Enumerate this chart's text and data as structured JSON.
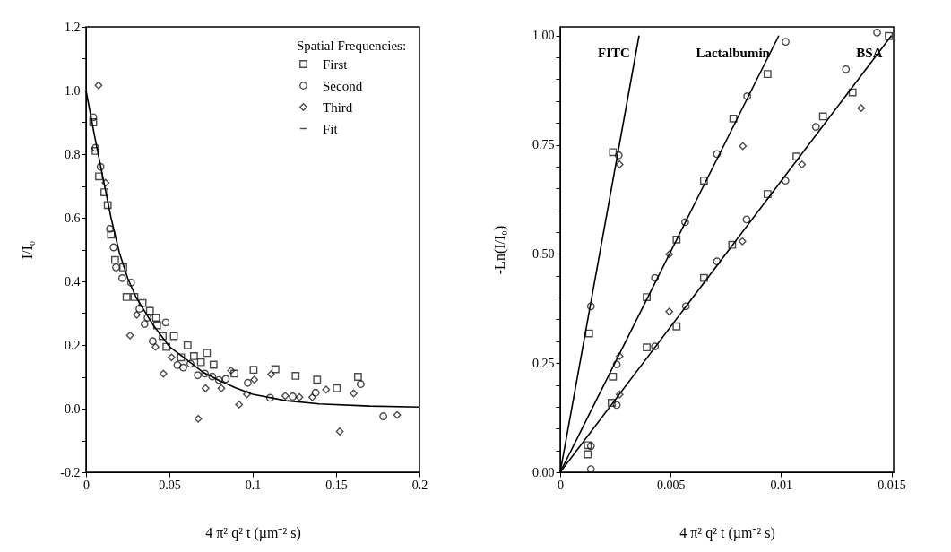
{
  "chart_data": [
    {
      "type": "scatter",
      "xlabel": "4 π² q² t  (µm⁻² s)",
      "ylabel": "I/I₀",
      "legend_title": "Spatial Frequencies:",
      "legend": "top right",
      "grid": false,
      "xlim": [
        0,
        0.2
      ],
      "ylim": [
        -0.2,
        1.2
      ],
      "xticks": [
        0,
        0.05,
        0.1,
        0.15,
        0.2
      ],
      "yticks": [
        {
          "value": -0.2,
          "label": "-0.2"
        },
        {
          "value": -0.1,
          "label": null
        },
        {
          "value": 0,
          "label": "0.0"
        },
        {
          "value": 0.1,
          "label": null
        },
        0.2,
        {
          "value": 0.3,
          "label": null
        },
        0.4,
        {
          "value": 0.5,
          "label": null
        },
        0.6,
        {
          "value": 0.7,
          "label": null
        },
        0.8,
        {
          "value": 0.9,
          "label": null
        },
        {
          "value": 1,
          "label": "1.0"
        },
        {
          "value": 1.1,
          "label": null
        },
        1.2
      ],
      "series": [
        {
          "name": "First",
          "marker": "square",
          "color": "#000000",
          "x": [
            0.0043,
            0.0057,
            0.0078,
            0.011,
            0.013,
            0.015,
            0.0174,
            0.0223,
            0.0243,
            0.029,
            0.0339,
            0.0383,
            0.042,
            0.0426,
            0.046,
            0.0527,
            0.0482,
            0.0609,
            0.057,
            0.0647,
            0.0725,
            0.0689,
            0.0765,
            0.089,
            0.1005,
            0.1136,
            0.1257,
            0.1386,
            0.1504,
            0.1631
          ],
          "values": [
            0.9,
            0.81,
            0.73,
            0.68,
            0.64,
            0.547,
            0.467,
            0.444,
            0.351,
            0.351,
            0.332,
            0.307,
            0.286,
            0.262,
            0.228,
            0.228,
            0.194,
            0.199,
            0.161,
            0.165,
            0.175,
            0.146,
            0.138,
            0.11,
            0.122,
            0.124,
            0.103,
            0.091,
            0.064,
            0.1
          ]
        },
        {
          "name": "Second",
          "marker": "circle",
          "color": "#000000",
          "x": [
            0.0043,
            0.0057,
            0.0087,
            0.0143,
            0.0165,
            0.018,
            0.0217,
            0.027,
            0.032,
            0.0369,
            0.0478,
            0.0351,
            0.04,
            0.0548,
            0.0583,
            0.0626,
            0.067,
            0.0713,
            0.0757,
            0.0797,
            0.0838,
            0.097,
            0.1104,
            0.124,
            0.1377,
            0.1647,
            0.1783
          ],
          "values": [
            0.916,
            0.82,
            0.76,
            0.565,
            0.507,
            0.444,
            0.41,
            0.396,
            0.314,
            0.286,
            0.271,
            0.266,
            0.212,
            0.137,
            0.129,
            0.141,
            0.105,
            0.11,
            0.101,
            0.09,
            0.093,
            0.081,
            0.034,
            0.038,
            0.05,
            0.077,
            -0.024
          ]
        },
        {
          "name": "Third",
          "marker": "diamond",
          "color": "#000000",
          "x": [
            0.0075,
            0.0117,
            0.0304,
            0.0264,
            0.0417,
            0.0513,
            0.0464,
            0.087,
            0.0717,
            0.0812,
            0.1009,
            0.0965,
            0.0918,
            0.0673,
            0.111,
            0.1195,
            0.128,
            0.1357,
            0.144,
            0.1522,
            0.1605,
            0.1866
          ],
          "values": [
            1.016,
            0.71,
            0.295,
            0.23,
            0.194,
            0.161,
            0.11,
            0.12,
            0.064,
            0.064,
            0.091,
            0.045,
            0.013,
            -0.032,
            0.108,
            0.04,
            0.036,
            0.036,
            0.06,
            -0.072,
            0.048,
            -0.02
          ]
        },
        {
          "name": "Fit",
          "type": "line",
          "marker": "none",
          "color": "#000000",
          "x": [
            0,
            0.005,
            0.01,
            0.015,
            0.02,
            0.025,
            0.03,
            0.04,
            0.05,
            0.06,
            0.07,
            0.08,
            0.09,
            0.1,
            0.12,
            0.14,
            0.17,
            0.2
          ],
          "values": [
            1.0,
            0.86,
            0.73,
            0.6,
            0.49,
            0.41,
            0.35,
            0.265,
            0.195,
            0.155,
            0.115,
            0.088,
            0.065,
            0.045,
            0.025,
            0.015,
            0.008,
            0.005
          ]
        }
      ]
    },
    {
      "type": "scatter",
      "xlabel": "4 π² q² t  (µm⁻² s)",
      "ylabel": "-Ln(I/I₀)",
      "grid": false,
      "xlim": [
        0,
        0.0151
      ],
      "ylim": [
        0,
        1.02
      ],
      "xticks": [
        0,
        0.005,
        0.01,
        0.015
      ],
      "yticks": [
        {
          "value": 0,
          "label": "0.00"
        },
        {
          "value": 0.05,
          "label": null
        },
        {
          "value": 0.1,
          "label": null
        },
        {
          "value": 0.15,
          "label": null
        },
        {
          "value": 0.2,
          "label": null
        },
        0.25,
        {
          "value": 0.3,
          "label": null
        },
        {
          "value": 0.35,
          "label": null
        },
        {
          "value": 0.4,
          "label": null
        },
        {
          "value": 0.45,
          "label": null
        },
        {
          "value": 0.5,
          "label": "0.50"
        },
        {
          "value": 0.55,
          "label": null
        },
        {
          "value": 0.6,
          "label": null
        },
        {
          "value": 0.65,
          "label": null
        },
        {
          "value": 0.7,
          "label": null
        },
        0.75,
        {
          "value": 0.8,
          "label": null
        },
        {
          "value": 0.85,
          "label": null
        },
        {
          "value": 0.9,
          "label": null
        },
        {
          "value": 0.95,
          "label": null
        },
        {
          "value": 1,
          "label": "1.00"
        }
      ],
      "series": [
        {
          "marker": "square",
          "color": "#000000",
          "x": [
            0.00131,
            0.00239
          ],
          "values": [
            0.318,
            0.733
          ]
        },
        {
          "marker": "circle",
          "color": "#000000",
          "x": [
            0.00139,
            0.00265
          ],
          "values": [
            0.38,
            0.726
          ]
        },
        {
          "marker": "diamond",
          "color": "#000000",
          "x": [
            0.00269
          ],
          "values": [
            0.705
          ]
        },
        {
          "marker": "square",
          "color": "#000000",
          "x": [
            0.00125,
            0.00239,
            0.00392,
            0.00527,
            0.00651,
            0.00784,
            0.00939
          ],
          "values": [
            0.062,
            0.219,
            0.401,
            0.533,
            0.668,
            0.81,
            0.912
          ]
        },
        {
          "marker": "circle",
          "color": "#000000",
          "x": [
            0.00139,
            0.00256,
            0.00429,
            0.00566,
            0.0071,
            0.00847,
            0.01021
          ],
          "values": [
            0.06,
            0.247,
            0.445,
            0.573,
            0.729,
            0.861,
            0.986
          ]
        },
        {
          "marker": "diamond",
          "color": "#000000",
          "x": [
            0.00269,
            0.00494,
            0.00827
          ],
          "values": [
            0.266,
            0.499,
            0.747
          ]
        },
        {
          "marker": "square",
          "color": "#000000",
          "x": [
            0.00125,
            0.00233,
            0.00392,
            0.00527,
            0.00651,
            0.00779,
            0.00939,
            0.0107,
            0.0119,
            0.01324,
            0.01488
          ],
          "values": [
            0.041,
            0.159,
            0.286,
            0.334,
            0.445,
            0.521,
            0.637,
            0.723,
            0.815,
            0.87,
            0.999
          ]
        },
        {
          "marker": "circle",
          "color": "#000000",
          "x": [
            0.00139,
            0.00256,
            0.00429,
            0.00569,
            0.0071,
            0.00844,
            0.0102,
            0.01158,
            0.01294,
            0.01435
          ],
          "values": [
            0.007,
            0.154,
            0.288,
            0.38,
            0.483,
            0.579,
            0.668,
            0.791,
            0.923,
            1.007
          ]
        },
        {
          "marker": "diamond",
          "color": "#000000",
          "x": [
            0.00269,
            0.00494,
            0.00825,
            0.01095,
            0.01363
          ],
          "values": [
            0.178,
            0.368,
            0.529,
            0.705,
            0.834
          ]
        },
        {
          "name": "FITC",
          "type": "line",
          "color": "#000000",
          "x": [
            0,
            0.00357
          ],
          "values": [
            0,
            1.0
          ]
        },
        {
          "name": "Lactalbumin",
          "type": "line",
          "color": "#000000",
          "x": [
            0,
            0.0099
          ],
          "values": [
            0,
            1.0
          ]
        },
        {
          "name": "BSA",
          "type": "line",
          "color": "#000000",
          "x": [
            0,
            0.015
          ],
          "values": [
            0,
            1.0
          ]
        }
      ]
    }
  ]
}
